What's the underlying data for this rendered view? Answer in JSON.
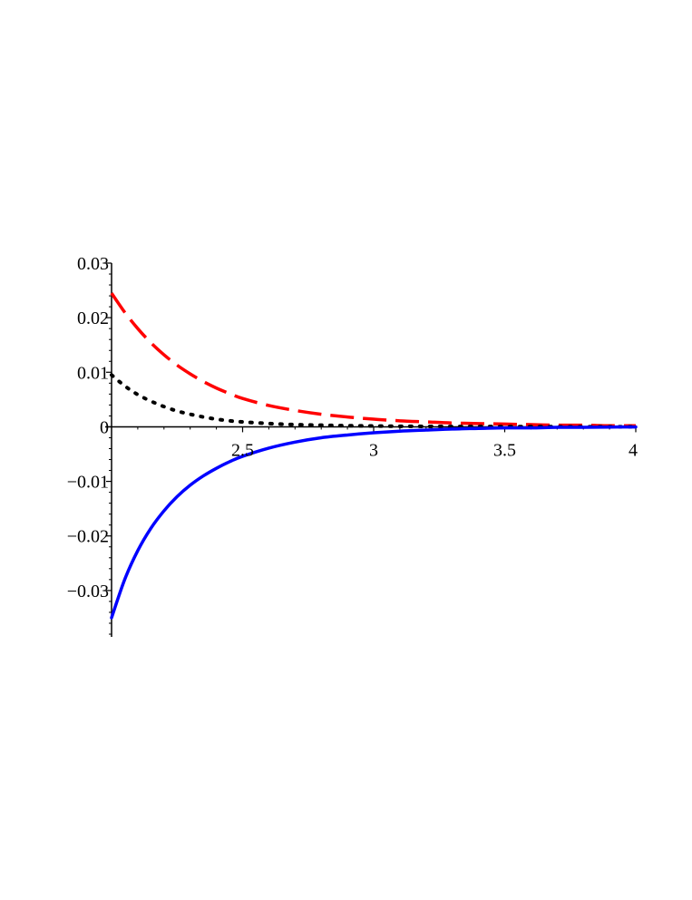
{
  "chart_data": {
    "type": "line",
    "title": "",
    "xlabel": "",
    "ylabel": "",
    "xlim": [
      2,
      4
    ],
    "ylim": [
      -0.0385,
      0.03
    ],
    "grid": false,
    "legend": "none",
    "x_ticks": [
      {
        "value": 2.5,
        "label": "2.5"
      },
      {
        "value": 3,
        "label": "3"
      },
      {
        "value": 3.5,
        "label": "3.5"
      },
      {
        "value": 4,
        "label": "4"
      }
    ],
    "y_ticks": [
      {
        "value": 0.03,
        "label": "0.03"
      },
      {
        "value": 0.02,
        "label": "0.02"
      },
      {
        "value": 0.01,
        "label": "0.01"
      },
      {
        "value": 0,
        "label": "0"
      },
      {
        "value": -0.01,
        "label": "-0.01"
      },
      {
        "value": -0.02,
        "label": "-0.02"
      },
      {
        "value": -0.03,
        "label": "-0.03"
      }
    ],
    "series": [
      {
        "style": "dashed",
        "color": "#ff0000",
        "x": [
          2.0,
          2.05,
          2.1,
          2.15,
          2.2,
          2.25,
          2.3,
          2.35,
          2.4,
          2.45,
          2.5,
          2.6,
          2.7,
          2.8,
          2.9,
          3.0,
          3.1,
          3.2,
          3.3,
          3.4,
          3.5,
          3.6,
          3.7,
          3.8,
          3.9,
          4.0
        ],
        "y": [
          0.0245,
          0.021,
          0.018,
          0.0154,
          0.0132,
          0.0113,
          0.0097,
          0.0083,
          0.0071,
          0.0061,
          0.0052,
          0.0039,
          0.003,
          0.0023,
          0.0018,
          0.0014,
          0.0011,
          0.0009,
          0.0007,
          0.0006,
          0.0005,
          0.0004,
          0.0003,
          0.0003,
          0.0002,
          0.0002
        ]
      },
      {
        "style": "dotted",
        "color": "#000000",
        "x": [
          2.0,
          2.05,
          2.1,
          2.15,
          2.2,
          2.25,
          2.3,
          2.35,
          2.4,
          2.45,
          2.5,
          2.6,
          2.7,
          2.8,
          2.9,
          3.0,
          3.1,
          3.2,
          3.3,
          3.4,
          3.5,
          3.6,
          3.7,
          3.8,
          3.9,
          4.0
        ],
        "y": [
          0.0095,
          0.0075,
          0.0059,
          0.0047,
          0.0037,
          0.0029,
          0.0023,
          0.0018,
          0.0014,
          0.0011,
          0.0009,
          0.0006,
          0.0004,
          0.0003,
          0.0002,
          0.00015,
          0.0001,
          8e-05,
          6e-05,
          5e-05,
          4e-05,
          3e-05,
          2e-05,
          2e-05,
          1e-05,
          1e-05
        ]
      },
      {
        "style": "solid",
        "color": "#0000ff",
        "x": [
          2.0,
          2.05,
          2.1,
          2.15,
          2.2,
          2.25,
          2.3,
          2.35,
          2.4,
          2.45,
          2.5,
          2.6,
          2.7,
          2.8,
          2.9,
          3.0,
          3.1,
          3.2,
          3.3,
          3.4,
          3.5,
          3.6,
          3.7,
          3.8,
          3.9,
          4.0
        ],
        "y": [
          -0.035,
          -0.028,
          -0.0227,
          -0.0186,
          -0.0154,
          -0.0128,
          -0.0107,
          -0.009,
          -0.0076,
          -0.0064,
          -0.0054,
          -0.0039,
          -0.0028,
          -0.002,
          -0.0015,
          -0.0011,
          -0.0008,
          -0.0006,
          -0.0004,
          -0.0003,
          -0.0002,
          -0.0002,
          -0.0001,
          -0.0001,
          -5e-05,
          -3e-05
        ]
      }
    ]
  }
}
